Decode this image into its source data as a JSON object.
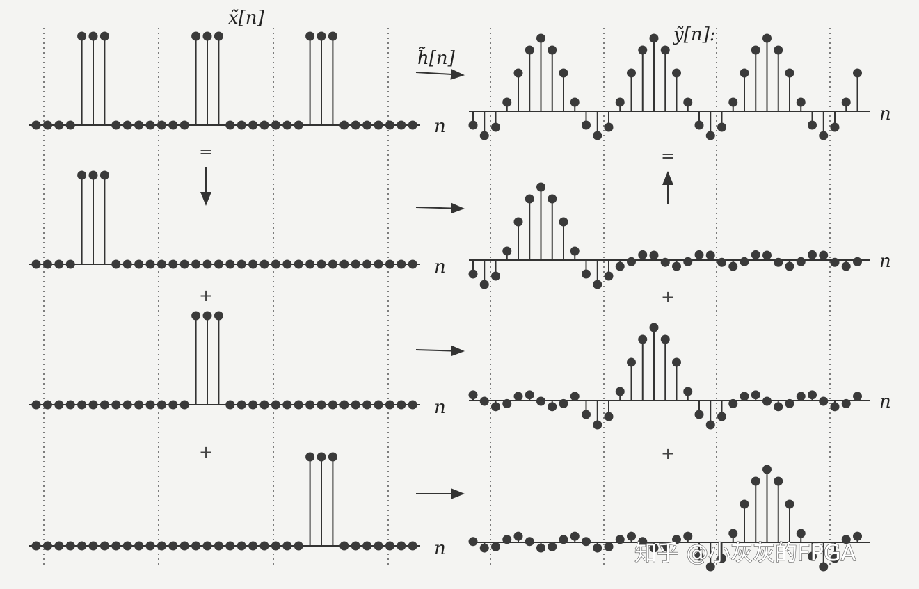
{
  "labels": {
    "x": "x̃[n]",
    "h": "h̃[n]",
    "y": "ỹ[n]:"
  },
  "axis_label": "n",
  "equals": "=",
  "plus": "+",
  "watermark": "知乎 @小灰灰的FPGA"
}
